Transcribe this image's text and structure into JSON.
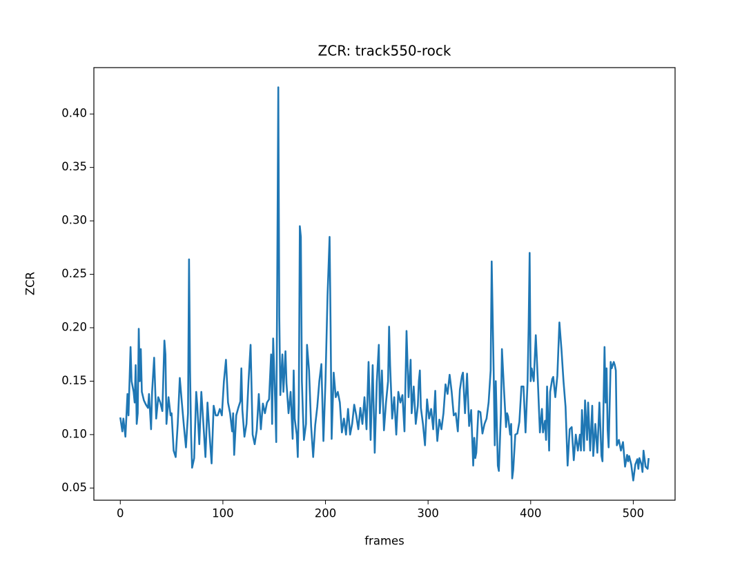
{
  "chart_data": {
    "type": "line",
    "title": "ZCR: track550-rock",
    "x_label": "frames",
    "y_label": "ZCR",
    "xlim": [
      -25.75,
      540.75
    ],
    "ylim": [
      0.0386,
      0.4434
    ],
    "xticks": [
      0,
      100,
      200,
      300,
      400,
      500
    ],
    "yticks": [
      0.05,
      {
        "value": 0.1,
        "label": "0.10"
      },
      0.15,
      {
        "value": 0.2,
        "label": "0.20"
      },
      0.25,
      {
        "value": 0.3,
        "label": "0.30"
      },
      0.35,
      {
        "value": 0.4,
        "label": "0.40"
      }
    ],
    "series": [
      {
        "name": "ZCR",
        "color": "#1f77b4",
        "x": [
          0,
          2,
          3,
          5,
          7,
          8,
          10,
          11,
          13,
          14,
          15,
          16,
          17,
          18,
          19,
          20,
          21,
          23,
          25,
          27,
          28,
          30,
          31,
          33,
          35,
          37,
          39,
          41,
          43,
          44,
          45,
          47,
          49,
          50,
          52,
          54,
          56,
          58,
          60,
          62,
          64,
          66,
          67,
          68,
          69,
          70,
          72,
          74,
          75,
          77,
          79,
          81,
          83,
          85,
          87,
          89,
          91,
          93,
          95,
          97,
          99,
          101,
          102,
          103,
          105,
          107,
          109,
          110,
          111,
          113,
          115,
          117,
          118,
          119,
          121,
          123,
          125,
          127,
          129,
          131,
          133,
          135,
          137,
          139,
          141,
          143,
          145,
          147,
          148,
          149,
          151,
          152,
          153,
          154,
          155,
          156,
          158,
          159,
          161,
          162,
          164,
          166,
          168,
          169,
          170,
          172,
          173,
          174,
          175,
          176,
          177,
          178,
          179,
          181,
          182,
          184,
          186,
          188,
          190,
          192,
          194,
          196,
          198,
          200,
          202,
          204,
          205,
          206,
          208,
          210,
          212,
          214,
          216,
          218,
          220,
          222,
          224,
          226,
          228,
          230,
          232,
          234,
          236,
          238,
          240,
          242,
          244,
          246,
          248,
          250,
          252,
          253,
          255,
          257,
          259,
          261,
          262,
          263,
          265,
          267,
          269,
          271,
          273,
          275,
          277,
          279,
          281,
          283,
          284,
          286,
          288,
          290,
          291,
          292,
          293,
          295,
          297,
          299,
          301,
          303,
          305,
          307,
          308,
          309,
          311,
          313,
          315,
          317,
          319,
          321,
          323,
          325,
          327,
          329,
          331,
          333,
          334,
          336,
          338,
          340,
          342,
          344,
          345,
          346,
          347,
          349,
          351,
          353,
          355,
          357,
          359,
          361,
          362,
          364,
          365,
          366,
          368,
          369,
          371,
          372,
          374,
          376,
          377,
          378,
          380,
          381,
          382,
          383,
          385,
          387,
          389,
          391,
          393,
          395,
          397,
          398,
          399,
          400,
          401,
          403,
          405,
          407,
          409,
          411,
          412,
          414,
          415,
          416,
          418,
          419,
          421,
          422,
          424,
          426,
          428,
          430,
          432,
          434,
          436,
          438,
          440,
          442,
          444,
          446,
          448,
          449,
          450,
          452,
          453,
          455,
          456,
          458,
          460,
          461,
          463,
          465,
          467,
          469,
          470,
          472,
          473,
          474,
          475,
          476,
          478,
          479,
          481,
          482,
          483,
          484,
          486,
          488,
          490,
          492,
          494,
          495,
          496,
          498,
          500,
          502,
          504,
          505,
          506,
          508,
          509,
          510,
          512,
          514,
          515
        ],
        "values": [
          0.116,
          0.103,
          0.115,
          0.098,
          0.138,
          0.118,
          0.182,
          0.15,
          0.14,
          0.13,
          0.165,
          0.11,
          0.12,
          0.199,
          0.15,
          0.18,
          0.14,
          0.132,
          0.128,
          0.125,
          0.138,
          0.105,
          0.14,
          0.172,
          0.115,
          0.135,
          0.13,
          0.122,
          0.188,
          0.175,
          0.11,
          0.135,
          0.118,
          0.12,
          0.085,
          0.079,
          0.11,
          0.153,
          0.13,
          0.108,
          0.088,
          0.12,
          0.264,
          0.16,
          0.1,
          0.069,
          0.078,
          0.14,
          0.128,
          0.091,
          0.14,
          0.11,
          0.079,
          0.13,
          0.1,
          0.073,
          0.127,
          0.118,
          0.118,
          0.124,
          0.118,
          0.15,
          0.16,
          0.17,
          0.13,
          0.12,
          0.103,
          0.12,
          0.081,
          0.118,
          0.125,
          0.131,
          0.162,
          0.123,
          0.098,
          0.11,
          0.15,
          0.184,
          0.1,
          0.091,
          0.104,
          0.138,
          0.105,
          0.129,
          0.12,
          0.13,
          0.133,
          0.175,
          0.11,
          0.19,
          0.13,
          0.093,
          0.25,
          0.425,
          0.21,
          0.137,
          0.175,
          0.14,
          0.178,
          0.148,
          0.12,
          0.14,
          0.096,
          0.16,
          0.115,
          0.1,
          0.079,
          0.13,
          0.295,
          0.285,
          0.15,
          0.12,
          0.095,
          0.11,
          0.184,
          0.16,
          0.108,
          0.079,
          0.109,
          0.126,
          0.15,
          0.166,
          0.094,
          0.15,
          0.23,
          0.285,
          0.2,
          0.096,
          0.158,
          0.135,
          0.14,
          0.13,
          0.102,
          0.115,
          0.1,
          0.124,
          0.1,
          0.11,
          0.128,
          0.118,
          0.105,
          0.125,
          0.11,
          0.135,
          0.105,
          0.168,
          0.095,
          0.165,
          0.083,
          0.149,
          0.184,
          0.12,
          0.16,
          0.104,
          0.13,
          0.15,
          0.201,
          0.165,
          0.115,
          0.135,
          0.1,
          0.14,
          0.13,
          0.137,
          0.103,
          0.197,
          0.135,
          0.17,
          0.12,
          0.145,
          0.11,
          0.127,
          0.15,
          0.16,
          0.125,
          0.11,
          0.09,
          0.133,
          0.115,
          0.124,
          0.105,
          0.141,
          0.11,
          0.094,
          0.114,
          0.105,
          0.12,
          0.147,
          0.138,
          0.156,
          0.14,
          0.118,
          0.12,
          0.103,
          0.142,
          0.155,
          0.158,
          0.12,
          0.157,
          0.108,
          0.123,
          0.071,
          0.097,
          0.078,
          0.083,
          0.122,
          0.121,
          0.101,
          0.11,
          0.115,
          0.13,
          0.16,
          0.262,
          0.155,
          0.09,
          0.15,
          0.071,
          0.066,
          0.12,
          0.18,
          0.142,
          0.107,
          0.12,
          0.117,
          0.1,
          0.11,
          0.059,
          0.067,
          0.1,
          0.101,
          0.112,
          0.145,
          0.145,
          0.102,
          0.15,
          0.2,
          0.27,
          0.15,
          0.162,
          0.15,
          0.193,
          0.15,
          0.102,
          0.124,
          0.102,
          0.113,
          0.095,
          0.145,
          0.085,
          0.14,
          0.152,
          0.154,
          0.135,
          0.155,
          0.205,
          0.18,
          0.15,
          0.126,
          0.071,
          0.105,
          0.107,
          0.076,
          0.1,
          0.085,
          0.1,
          0.085,
          0.123,
          0.085,
          0.132,
          0.095,
          0.13,
          0.085,
          0.127,
          0.08,
          0.11,
          0.083,
          0.13,
          0.08,
          0.075,
          0.182,
          0.13,
          0.162,
          0.105,
          0.088,
          0.168,
          0.162,
          0.168,
          0.165,
          0.16,
          0.09,
          0.095,
          0.085,
          0.093,
          0.07,
          0.081,
          0.075,
          0.08,
          0.072,
          0.057,
          0.072,
          0.077,
          0.068,
          0.078,
          0.072,
          0.065,
          0.085,
          0.07,
          0.068,
          0.078
        ]
      }
    ]
  }
}
